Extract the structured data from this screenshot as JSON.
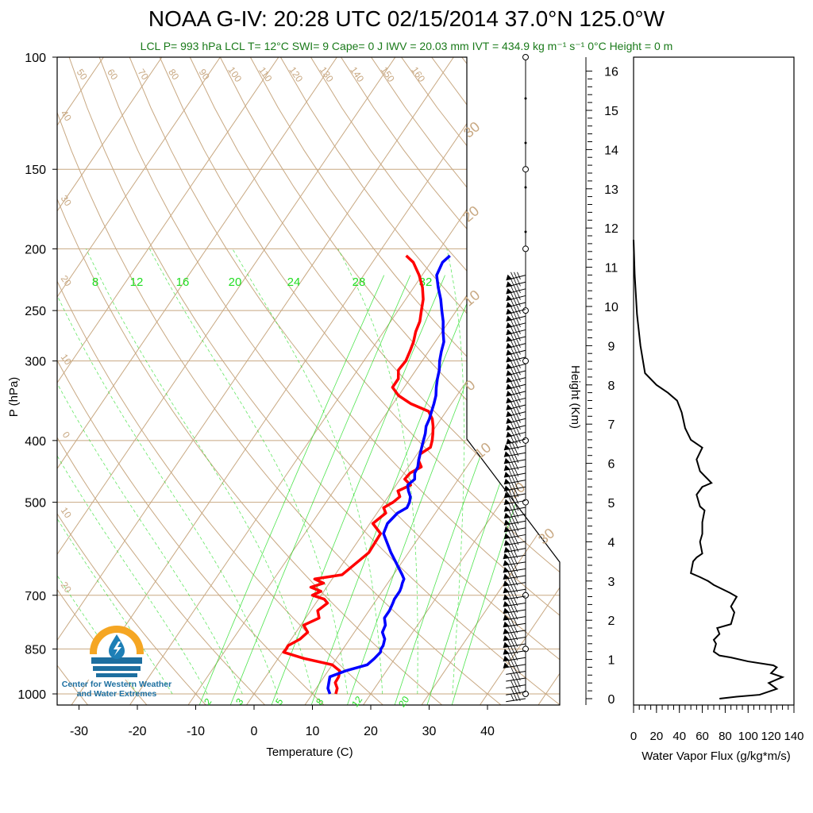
{
  "title": "NOAA G-IV: 20:28 UTC 02/15/2014  37.0°N 125.0°W",
  "subtitle": "LCL P= 993 hPa  LCL T= 12°C  SWI= 9  Cape= 0 J  IWV = 20.03 mm  IVT = 434.9 kg m⁻¹ s⁻¹  0°C Height = 0 m",
  "logo": {
    "line1": "Center for Western Weather",
    "line2": "and Water Extremes"
  },
  "colors": {
    "temperature": "#ff0000",
    "dewpoint": "#0000ff",
    "mixing_ratio": "#22dd22",
    "adiabats": "#c8a882",
    "flux": "#000000"
  },
  "chart_data": [
    {
      "type": "line",
      "chart": "skew-t",
      "xlabel": "Temperature (C)",
      "ylabel": "P (hPa)",
      "xticks": [
        "-30",
        "-20",
        "-10",
        "0",
        "10",
        "20",
        "30",
        "40"
      ],
      "yticks": [
        "100",
        "150",
        "200",
        "250",
        "300",
        "400",
        "500",
        "700",
        "850",
        "1000"
      ],
      "xlim": [
        -34,
        36
      ],
      "ylim": [
        1040,
        100
      ],
      "mixing_ratio_labels": [
        "8",
        "12",
        "16",
        "20",
        "24",
        "28",
        "32"
      ],
      "mixing_ratio_bottom_labels": [
        "2",
        "3",
        "5",
        "8",
        "12",
        "20"
      ],
      "dry_adiabat_top_labels": [
        "50",
        "60",
        "70",
        "80",
        "90",
        "100",
        "110",
        "120",
        "130",
        "140",
        "150",
        "160"
      ],
      "dry_adiabat_left_labels": [
        "40",
        "30",
        "20",
        "10",
        "0",
        "10",
        "20"
      ],
      "moist_adiabat_labels": [
        "30",
        "20",
        "10",
        "0",
        "10",
        "20",
        "30"
      ],
      "series": [
        {
          "name": "Temperature",
          "p": [
            1000,
            980,
            960,
            940,
            920,
            900,
            880,
            860,
            850,
            840,
            820,
            800,
            780,
            760,
            740,
            720,
            710,
            700,
            690,
            680,
            670,
            660,
            650,
            600,
            560,
            540,
            520,
            510,
            500,
            490,
            480,
            470,
            460,
            450,
            440,
            430,
            420,
            410,
            400,
            390,
            380,
            370,
            360,
            350,
            340,
            330,
            320,
            310,
            300,
            290,
            280,
            270,
            260,
            250,
            240,
            230,
            220,
            210,
            205
          ],
          "values": [
            14,
            13.6,
            12.6,
            12.5,
            12.0,
            10.0,
            4.5,
            0.2,
            0.3,
            0.2,
            1.5,
            2.0,
            0.5,
            2.3,
            1.2,
            2.0,
            1.0,
            -1.5,
            -0.5,
            -2.7,
            -1.0,
            -3.0,
            1.2,
            3.2,
            3.0,
            0.5,
            1.5,
            0.5,
            1.5,
            2.0,
            1.0,
            2.5,
            0.8,
            1.0,
            2.2,
            1.0,
            0.5,
            1.5,
            1.0,
            0.3,
            -0.5,
            -1.5,
            -3.0,
            -7.0,
            -10.0,
            -12.0,
            -12.0,
            -13.0,
            -12.8,
            -13.2,
            -13.7,
            -14.5,
            -15.0,
            -16.0,
            -17.0,
            -18.5,
            -20.5,
            -23.0,
            -25.0
          ]
        },
        {
          "name": "Dewpoint",
          "p": [
            1000,
            980,
            960,
            940,
            920,
            900,
            880,
            860,
            850,
            840,
            820,
            800,
            780,
            760,
            740,
            720,
            710,
            700,
            690,
            680,
            670,
            660,
            650,
            600,
            560,
            540,
            520,
            510,
            500,
            490,
            480,
            470,
            460,
            450,
            440,
            430,
            420,
            410,
            400,
            390,
            380,
            370,
            360,
            350,
            340,
            330,
            320,
            310,
            300,
            290,
            280,
            270,
            260,
            250,
            240,
            230,
            220,
            210,
            205
          ],
          "values": [
            13.0,
            12.0,
            11.5,
            11.0,
            13.0,
            16.0,
            16.5,
            16.8,
            16.5,
            16.5,
            16.0,
            14.8,
            14.5,
            13.5,
            13.5,
            13.2,
            13.0,
            13.0,
            13.0,
            12.8,
            12.5,
            12.3,
            11.5,
            7.0,
            3.5,
            3.0,
            3.5,
            4.5,
            4.3,
            3.8,
            2.8,
            2.0,
            2.5,
            1.8,
            1.6,
            1.0,
            0.5,
            0.0,
            -0.5,
            -1.0,
            -1.7,
            -2.0,
            -2.5,
            -3.0,
            -3.6,
            -4.5,
            -5.3,
            -6.0,
            -7.0,
            -7.8,
            -8.5,
            -9.8,
            -11.0,
            -12.5,
            -14.0,
            -15.8,
            -17.5,
            -18.0,
            -17.5
          ]
        }
      ]
    },
    {
      "type": "line",
      "chart": "water-vapor-flux-profile",
      "xlabel": "Water Vapor Flux (g/kg*m/s)",
      "ylabel": "Height (Km)",
      "xticks": [
        "0",
        "20",
        "40",
        "60",
        "80",
        "100",
        "120",
        "140"
      ],
      "yticks": [
        "0",
        "1",
        "2",
        "3",
        "4",
        "5",
        "6",
        "7",
        "8",
        "9",
        "10",
        "11",
        "12",
        "13",
        "14",
        "15",
        "16"
      ],
      "xlim": [
        0,
        140
      ],
      "ylim": [
        -0.3,
        16.5
      ],
      "series": [
        {
          "name": "Water Vapor Flux",
          "x": [
            75,
            90,
            110,
            125,
            118,
            130,
            120,
            125,
            122,
            100,
            85,
            75,
            70,
            72,
            70,
            75,
            73,
            85,
            88,
            85,
            90,
            84,
            70,
            65,
            58,
            50,
            52,
            55,
            60,
            58,
            60,
            60,
            62,
            58,
            55,
            60,
            68,
            58,
            55,
            60,
            50,
            45,
            42,
            38,
            30,
            20,
            10,
            6,
            3,
            1,
            0
          ],
          "y": [
            0.0,
            0.05,
            0.1,
            0.25,
            0.4,
            0.55,
            0.65,
            0.8,
            0.85,
            0.95,
            1.05,
            1.1,
            1.2,
            1.4,
            1.5,
            1.65,
            1.8,
            1.9,
            2.2,
            2.35,
            2.6,
            2.7,
            2.9,
            3.0,
            3.1,
            3.2,
            3.5,
            3.6,
            3.7,
            4.0,
            4.2,
            4.5,
            4.8,
            4.9,
            5.2,
            5.4,
            5.5,
            5.8,
            6.1,
            6.4,
            6.6,
            6.9,
            7.3,
            7.6,
            7.8,
            8.0,
            8.3,
            9.0,
            9.8,
            10.8,
            11.7
          ]
        }
      ]
    }
  ]
}
